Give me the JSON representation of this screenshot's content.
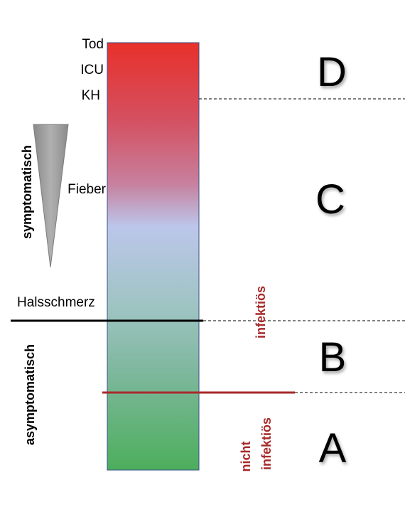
{
  "severity_labels": {
    "tod": "Tod",
    "icu": "ICU",
    "kh": "KH",
    "fieber": "Fieber",
    "halsschmerz": "Halsschmerz"
  },
  "side_labels": {
    "symptomatic": "symptomatisch",
    "asymptomatic": "asymptomatisch"
  },
  "zones": {
    "d": "D",
    "c": "C",
    "b": "B",
    "a": "A"
  },
  "infectivity": {
    "infectious": "infektiös",
    "not_line1": "nicht",
    "not_line2": "infektiös"
  },
  "colors": {
    "bar_top": "#e8302a",
    "bar_mid_red": "#d45060",
    "bar_mid_pink": "#c7809e",
    "bar_mid_blue": "#bcc6ea",
    "bar_mid_teal": "#9ec4c2",
    "bar_low_teal": "#80b8a0",
    "bar_bottom": "#4cae5c",
    "bar_border": "#3a4f8a",
    "infectivity_red": "#a8292a",
    "triangle_gray": "#a0a0a0",
    "symptom_line": "#000000"
  }
}
